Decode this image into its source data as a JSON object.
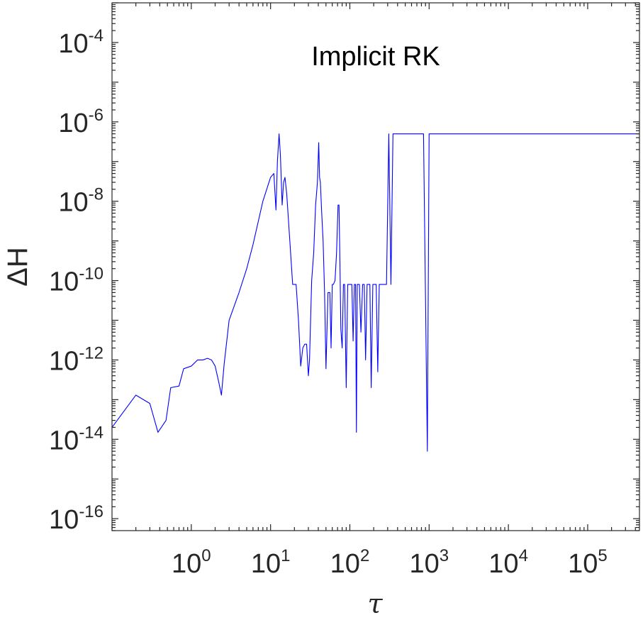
{
  "chart_data": {
    "type": "line",
    "annotation": "Implicit RK",
    "xlabel": "τ",
    "ylabel": "ΔH",
    "xscale": "log",
    "yscale": "log",
    "xlim": [
      0.1,
      450000
    ],
    "ylim": [
      5e-17,
      0.001
    ],
    "grid": false,
    "box": true,
    "line_color": "#0000ff",
    "x_ticks": [
      {
        "base": "10",
        "exp": "0",
        "value": 1
      },
      {
        "base": "10",
        "exp": "1",
        "value": 10
      },
      {
        "base": "10",
        "exp": "2",
        "value": 100
      },
      {
        "base": "10",
        "exp": "3",
        "value": 1000
      },
      {
        "base": "10",
        "exp": "4",
        "value": 10000
      },
      {
        "base": "10",
        "exp": "5",
        "value": 100000
      }
    ],
    "y_ticks": [
      {
        "base": "10",
        "exp": "-16",
        "value": 1e-16
      },
      {
        "base": "10",
        "exp": "-14",
        "value": 1e-14
      },
      {
        "base": "10",
        "exp": "-12",
        "value": 1e-12
      },
      {
        "base": "10",
        "exp": "-10",
        "value": 1e-10
      },
      {
        "base": "10",
        "exp": "-8",
        "value": 1e-08
      },
      {
        "base": "10",
        "exp": "-6",
        "value": 1e-06
      },
      {
        "base": "10",
        "exp": "-4",
        "value": 0.0001
      }
    ],
    "series": [
      {
        "x": [
          0.1,
          0.2,
          0.3,
          0.38,
          0.48,
          0.55,
          0.7,
          0.8,
          1.0,
          1.2,
          1.4,
          1.6,
          1.8,
          2.0,
          2.2,
          2.4,
          2.6,
          3.0,
          4.0,
          5.0,
          6.0,
          8.0,
          10.0,
          11.0,
          11.7,
          12.2,
          12.8,
          13.3,
          14.0,
          14.6,
          15.2,
          16.0,
          17.5,
          19.0,
          21.0,
          22.5,
          24.0,
          25.5,
          27.0,
          28.5,
          30.0,
          31.0,
          33.0,
          35.0,
          37.0,
          39.0,
          40.5,
          41.5,
          42.5,
          44.0,
          46.0,
          48.0,
          50.0,
          53.0,
          56.0,
          58.0,
          60.0,
          62.0,
          65.0,
          68.0,
          71.0,
          73.0,
          75.0,
          77.0,
          80.0,
          83.0,
          86.0,
          90.0,
          94.0,
          98.0,
          102.0,
          106.0,
          110.0,
          114.0,
          118.0,
          121.0,
          124.0,
          127.0,
          132.0,
          138.0,
          145.0,
          152.0,
          158.0,
          165.0,
          172.0,
          179.0,
          186.0,
          195.0,
          205.0,
          215.0,
          225.0,
          235.0,
          245.0,
          255.0,
          270.0,
          290.0,
          310.0,
          330.0,
          350.0,
          380.0,
          420.0,
          460.0,
          500.0,
          550.0,
          600.0,
          680.0,
          760.0,
          850.0,
          950.0,
          1000.0,
          1200.0,
          1500.0,
          2000.0,
          3000.0,
          5000.0,
          10000.0,
          20000.0,
          50000.0,
          100000.0,
          450000.0
        ],
        "y": [
          2e-14,
          1.3e-13,
          8e-14,
          1.5e-14,
          3e-14,
          2e-13,
          2.2e-13,
          6e-13,
          7e-13,
          1e-12,
          1e-12,
          1.1e-12,
          1e-12,
          7e-13,
          3e-13,
          1.3e-13,
          8e-13,
          1e-11,
          5e-11,
          2e-10,
          8e-10,
          1e-08,
          4e-08,
          5e-08,
          6e-09,
          1e-07,
          5e-07,
          1.5e-07,
          8e-09,
          3e-08,
          4e-08,
          1.5e-08,
          1e-09,
          8e-11,
          8e-11,
          1e-11,
          7e-13,
          2e-12,
          2.5e-12,
          2.5e-12,
          4e-13,
          1e-12,
          1e-10,
          5e-10,
          8e-09,
          3e-08,
          3e-07,
          4e-08,
          3e-08,
          6e-09,
          1e-09,
          5e-11,
          6e-13,
          5e-11,
          5e-11,
          2e-12,
          8e-11,
          8e-11,
          1e-10,
          5e-10,
          8e-09,
          8e-09,
          3e-10,
          6e-12,
          2e-12,
          8e-11,
          8e-11,
          2e-13,
          8e-11,
          8e-11,
          8e-11,
          8e-11,
          3e-12,
          8e-11,
          8e-11,
          1.5e-14,
          8e-11,
          8e-11,
          8e-11,
          5e-12,
          8e-11,
          8e-11,
          1e-12,
          8e-11,
          8e-11,
          8e-11,
          2e-13,
          8e-11,
          8e-11,
          8e-11,
          5e-13,
          8e-11,
          8e-11,
          8e-11,
          8e-11,
          8e-11,
          5e-07,
          8e-11,
          5e-07,
          5e-07,
          5e-07,
          5e-07,
          5e-07,
          5e-07,
          5e-07,
          5e-07,
          5e-07,
          5e-07,
          5e-15,
          5e-07,
          5e-07,
          5e-07,
          5e-07,
          5e-07,
          5e-07,
          5e-07,
          5e-07,
          5e-07,
          5e-07,
          5e-07
        ]
      }
    ]
  }
}
